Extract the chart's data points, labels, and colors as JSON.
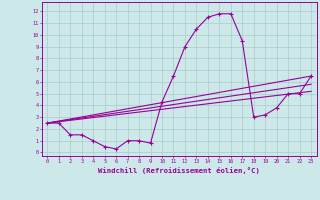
{
  "xlabel": "Windchill (Refroidissement éolien,°C)",
  "bg_color": "#cce8e8",
  "line_color": "#990099",
  "grid_color": "#aacccc",
  "x_ticks": [
    0,
    1,
    2,
    3,
    4,
    5,
    6,
    7,
    8,
    9,
    10,
    11,
    12,
    13,
    14,
    15,
    16,
    17,
    18,
    19,
    20,
    21,
    22,
    23
  ],
  "y_ticks": [
    0,
    1,
    2,
    3,
    4,
    5,
    6,
    7,
    8,
    9,
    10,
    11,
    12
  ],
  "xlim": [
    -0.5,
    23.5
  ],
  "ylim": [
    -0.3,
    12.8
  ],
  "main_x": [
    0,
    1,
    2,
    3,
    4,
    5,
    6,
    7,
    8,
    9,
    10,
    11,
    12,
    13,
    14,
    15,
    16,
    17,
    18,
    19,
    20,
    21,
    22,
    23
  ],
  "main_y": [
    2.5,
    2.5,
    1.5,
    1.5,
    1.0,
    0.5,
    0.3,
    1.0,
    1.0,
    0.8,
    4.3,
    6.5,
    9.0,
    10.5,
    11.5,
    11.8,
    11.8,
    9.5,
    3.0,
    3.2,
    3.8,
    5.0,
    5.0,
    6.5
  ],
  "line1_x": [
    0,
    23
  ],
  "line1_y": [
    2.5,
    6.5
  ],
  "line2_x": [
    0,
    23
  ],
  "line2_y": [
    2.5,
    5.8
  ],
  "line3_x": [
    0,
    23
  ],
  "line3_y": [
    2.5,
    5.2
  ]
}
